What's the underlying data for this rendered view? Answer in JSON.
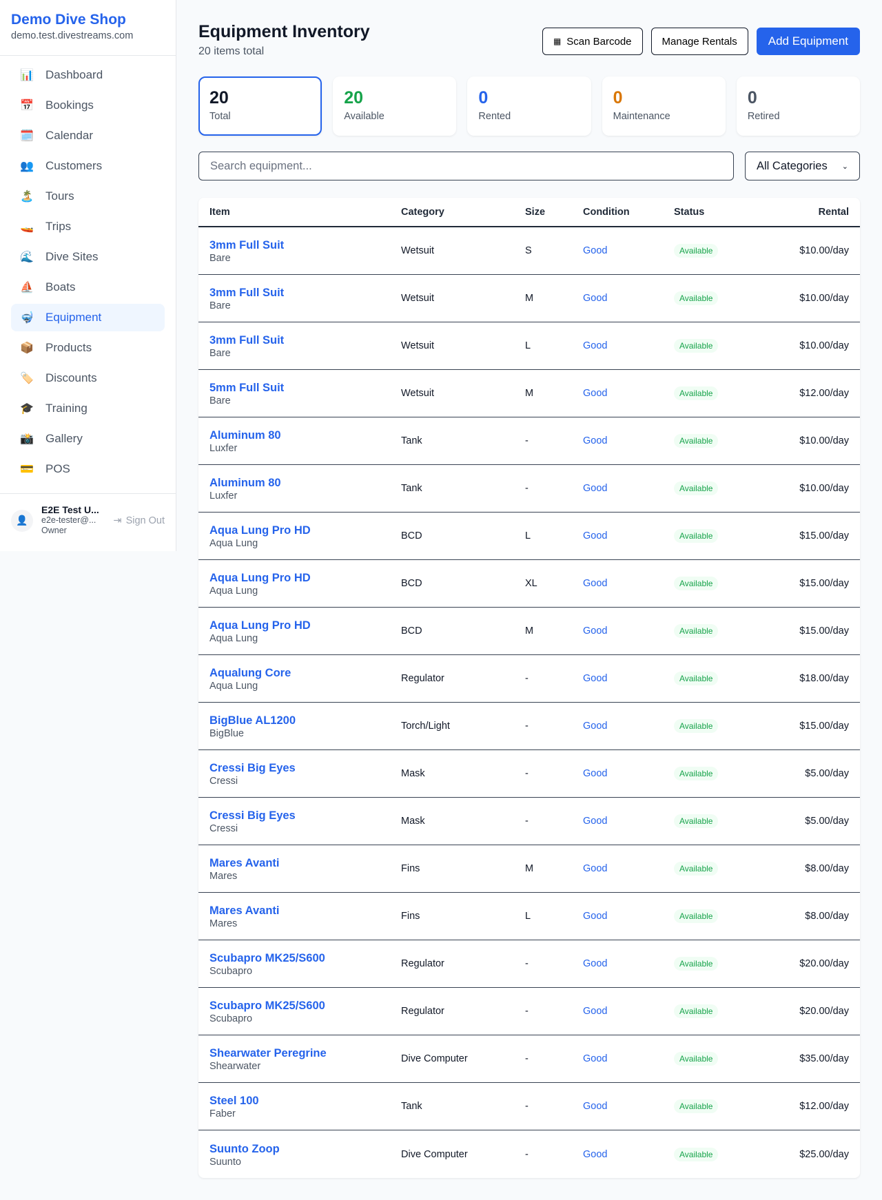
{
  "sidebar": {
    "brand": "Demo Dive Shop",
    "host": "demo.test.divestreams.com",
    "items": [
      {
        "label": "Dashboard",
        "icon": "📊"
      },
      {
        "label": "Bookings",
        "icon": "📅"
      },
      {
        "label": "Calendar",
        "icon": "🗓️"
      },
      {
        "label": "Customers",
        "icon": "👥"
      },
      {
        "label": "Tours",
        "icon": "🏝️"
      },
      {
        "label": "Trips",
        "icon": "🚤"
      },
      {
        "label": "Dive Sites",
        "icon": "🌊"
      },
      {
        "label": "Boats",
        "icon": "⛵"
      },
      {
        "label": "Equipment",
        "icon": "🤿",
        "active": true
      },
      {
        "label": "Products",
        "icon": "📦"
      },
      {
        "label": "Discounts",
        "icon": "🏷️"
      },
      {
        "label": "Training",
        "icon": "🎓"
      },
      {
        "label": "Gallery",
        "icon": "📸"
      },
      {
        "label": "POS",
        "icon": "💳"
      }
    ],
    "user": {
      "name": "E2E Test U...",
      "email": "e2e-tester@...",
      "role": "Owner",
      "sign_out": "Sign Out"
    }
  },
  "header": {
    "title": "Equipment Inventory",
    "subtitle": "20 items total",
    "scan": "Scan Barcode",
    "manage": "Manage Rentals",
    "add": "Add Equipment"
  },
  "stats": [
    {
      "value": "20",
      "label": "Total",
      "color": "#111827"
    },
    {
      "value": "20",
      "label": "Available",
      "color": "#16a34a"
    },
    {
      "value": "0",
      "label": "Rented",
      "color": "#2563eb"
    },
    {
      "value": "0",
      "label": "Maintenance",
      "color": "#d97706"
    },
    {
      "value": "0",
      "label": "Retired",
      "color": "#4b5563"
    }
  ],
  "filters": {
    "search_placeholder": "Search equipment...",
    "category": "All Categories"
  },
  "table": {
    "headers": [
      "Item",
      "Category",
      "Size",
      "Condition",
      "Status",
      "Rental"
    ],
    "rows": [
      [
        "3mm Full Suit",
        "Bare",
        "Wetsuit",
        "S",
        "Good",
        "Available",
        "$10.00/day"
      ],
      [
        "3mm Full Suit",
        "Bare",
        "Wetsuit",
        "M",
        "Good",
        "Available",
        "$10.00/day"
      ],
      [
        "3mm Full Suit",
        "Bare",
        "Wetsuit",
        "L",
        "Good",
        "Available",
        "$10.00/day"
      ],
      [
        "5mm Full Suit",
        "Bare",
        "Wetsuit",
        "M",
        "Good",
        "Available",
        "$12.00/day"
      ],
      [
        "Aluminum 80",
        "Luxfer",
        "Tank",
        "-",
        "Good",
        "Available",
        "$10.00/day"
      ],
      [
        "Aluminum 80",
        "Luxfer",
        "Tank",
        "-",
        "Good",
        "Available",
        "$10.00/day"
      ],
      [
        "Aqua Lung Pro HD",
        "Aqua Lung",
        "BCD",
        "L",
        "Good",
        "Available",
        "$15.00/day"
      ],
      [
        "Aqua Lung Pro HD",
        "Aqua Lung",
        "BCD",
        "XL",
        "Good",
        "Available",
        "$15.00/day"
      ],
      [
        "Aqua Lung Pro HD",
        "Aqua Lung",
        "BCD",
        "M",
        "Good",
        "Available",
        "$15.00/day"
      ],
      [
        "Aqualung Core",
        "Aqua Lung",
        "Regulator",
        "-",
        "Good",
        "Available",
        "$18.00/day"
      ],
      [
        "BigBlue AL1200",
        "BigBlue",
        "Torch/Light",
        "-",
        "Good",
        "Available",
        "$15.00/day"
      ],
      [
        "Cressi Big Eyes",
        "Cressi",
        "Mask",
        "-",
        "Good",
        "Available",
        "$5.00/day"
      ],
      [
        "Cressi Big Eyes",
        "Cressi",
        "Mask",
        "-",
        "Good",
        "Available",
        "$5.00/day"
      ],
      [
        "Mares Avanti",
        "Mares",
        "Fins",
        "M",
        "Good",
        "Available",
        "$8.00/day"
      ],
      [
        "Mares Avanti",
        "Mares",
        "Fins",
        "L",
        "Good",
        "Available",
        "$8.00/day"
      ],
      [
        "Scubapro MK25/S600",
        "Scubapro",
        "Regulator",
        "-",
        "Good",
        "Available",
        "$20.00/day"
      ],
      [
        "Scubapro MK25/S600",
        "Scubapro",
        "Regulator",
        "-",
        "Good",
        "Available",
        "$20.00/day"
      ],
      [
        "Shearwater Peregrine",
        "Shearwater",
        "Dive Computer",
        "-",
        "Good",
        "Available",
        "$35.00/day"
      ],
      [
        "Steel 100",
        "Faber",
        "Tank",
        "-",
        "Good",
        "Available",
        "$12.00/day"
      ],
      [
        "Suunto Zoop",
        "Suunto",
        "Dive Computer",
        "-",
        "Good",
        "Available",
        "$25.00/day"
      ]
    ]
  }
}
